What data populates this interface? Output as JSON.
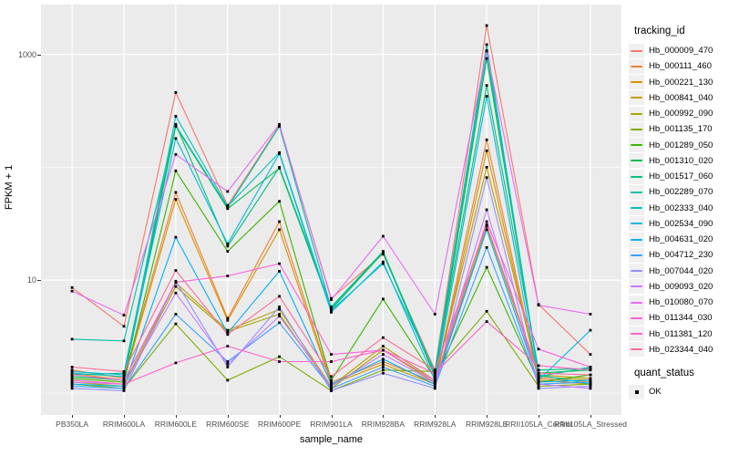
{
  "figure": {
    "background": "#ffffff",
    "panel_background": "#EBEBEB",
    "gridline_color": "#FFFFFF",
    "axis_text_color": "#4D4D4D",
    "point_color": "#000000"
  },
  "chart_data": {
    "type": "line",
    "title": "",
    "xlabel": "sample_name",
    "ylabel": "FPKM + 1",
    "y_scale": "log10",
    "y_tick_labels": [
      "1000",
      "10"
    ],
    "y_tick_values": [
      1000,
      10
    ],
    "y_minor_values": [
      100,
      1
    ],
    "ylim_log10": [
      -0.165,
      3.465
    ],
    "grid": true,
    "legend_position": "right",
    "legend_title": "tracking_id",
    "legend2_title": "quant_status",
    "legend2_items": [
      "OK"
    ],
    "point_shape": "small black square",
    "categories": [
      "PB350LA",
      "RRIM600LA",
      "RRIM600LE",
      "RRIM600SE",
      "RRIM600PE",
      "RRIM901LA",
      "RRIM928BA",
      "RRIM928LA",
      "RRIM928LE",
      "RRII105LA_Control",
      "RRII105LA_Stressed"
    ],
    "series": [
      {
        "name": "Hb_000009_470",
        "color": "#F8766D",
        "values": [
          8.6,
          3.9,
          460,
          46,
          235,
          6.9,
          17,
          1.6,
          1800,
          6.1,
          2.2
        ]
      },
      {
        "name": "Hb_000111_460",
        "color": "#EA8331",
        "values": [
          1.6,
          1.35,
          60,
          4.6,
          33,
          1.25,
          1.9,
          1.25,
          175,
          1.35,
          1.25
        ]
      },
      {
        "name": "Hb_000221_130",
        "color": "#D89000",
        "values": [
          1.5,
          1.3,
          52,
          4.4,
          28,
          1.2,
          1.8,
          1.2,
          140,
          1.3,
          1.2
        ]
      },
      {
        "name": "Hb_000841_040",
        "color": "#C09B00",
        "values": [
          1.3,
          1.2,
          9.5,
          3.6,
          5.5,
          1.15,
          2.6,
          1.3,
          100,
          1.45,
          1.35
        ]
      },
      {
        "name": "Hb_000992_090",
        "color": "#A3A500",
        "values": [
          1.25,
          1.15,
          8.8,
          3.5,
          5.0,
          1.1,
          2.4,
          1.25,
          30,
          1.4,
          1.3
        ]
      },
      {
        "name": "Hb_001135_170",
        "color": "#7CAE00",
        "values": [
          1.2,
          1.1,
          4.1,
          1.3,
          2.1,
          1.05,
          1.6,
          1.55,
          5.3,
          1.15,
          1.2
        ]
      },
      {
        "name": "Hb_001289_050",
        "color": "#39B600",
        "values": [
          1.35,
          1.25,
          93,
          18,
          50,
          1.3,
          6.8,
          1.35,
          13,
          1.25,
          1.45
        ]
      },
      {
        "name": "Hb_001310_020",
        "color": "#00BB4E",
        "values": [
          1.4,
          1.3,
          230,
          43,
          98,
          5.5,
          17.5,
          1.4,
          920,
          1.5,
          1.6
        ]
      },
      {
        "name": "Hb_001517_060",
        "color": "#00BF7D",
        "values": [
          1.45,
          1.5,
          240,
          20,
          100,
          5.8,
          18,
          1.45,
          530,
          1.6,
          1.65
        ]
      },
      {
        "name": "Hb_002289_070",
        "color": "#00C1A3",
        "values": [
          3.0,
          2.9,
          235,
          44,
          230,
          5.6,
          17.8,
          1.5,
          1070,
          1.4,
          1.7
        ]
      },
      {
        "name": "Hb_002333_040",
        "color": "#00BFC4",
        "values": [
          1.5,
          1.4,
          283,
          45,
          135,
          5.4,
          14,
          1.55,
          1220,
          1.45,
          1.2
        ]
      },
      {
        "name": "Hb_002534_090",
        "color": "#00BAE0",
        "values": [
          1.55,
          1.45,
          180,
          21,
          132,
          5.2,
          14.5,
          1.3,
          425,
          1.3,
          3.6
        ]
      },
      {
        "name": "Hb_004631_020",
        "color": "#00B0F6",
        "values": [
          1.2,
          1.15,
          24,
          3.4,
          12,
          1.2,
          2.0,
          1.2,
          28,
          1.25,
          1.3
        ]
      },
      {
        "name": "Hb_004712_230",
        "color": "#35A2FF",
        "values": [
          1.15,
          1.1,
          5.0,
          1.9,
          4.2,
          1.1,
          1.7,
          1.15,
          19.5,
          1.2,
          1.25
        ]
      },
      {
        "name": "Hb_007044_020",
        "color": "#9590FF",
        "values": [
          1.1,
          1.05,
          9.8,
          1.7,
          5.8,
          1.05,
          1.5,
          1.1,
          81,
          1.1,
          1.15
        ]
      },
      {
        "name": "Hb_009093_020",
        "color": "#C77CFF",
        "values": [
          1.25,
          1.2,
          7.7,
          1.8,
          4.8,
          1.15,
          2.2,
          1.25,
          42,
          1.2,
          1.1
        ]
      },
      {
        "name": "Hb_010080_070",
        "color": "#E76BF3",
        "values": [
          8.0,
          4.9,
          130,
          61,
          240,
          6.7,
          24.5,
          5.0,
          1080,
          6.0,
          5.0
        ]
      },
      {
        "name": "Hb_011344_030",
        "color": "#FA62DB",
        "values": [
          1.45,
          1.3,
          9.6,
          10.9,
          14,
          2.2,
          2.4,
          1.3,
          33,
          2.45,
          1.7
        ]
      },
      {
        "name": "Hb_011381_120",
        "color": "#FF61CC",
        "values": [
          1.3,
          1.2,
          1.85,
          2.6,
          1.9,
          1.9,
          2.4,
          1.5,
          4.3,
          1.75,
          1.6
        ]
      },
      {
        "name": "Hb_023344_040",
        "color": "#FF6A98",
        "values": [
          1.7,
          1.55,
          12.2,
          3.3,
          7.2,
          1.4,
          3.1,
          1.6,
          31,
          1.5,
          1.45
        ]
      }
    ]
  }
}
